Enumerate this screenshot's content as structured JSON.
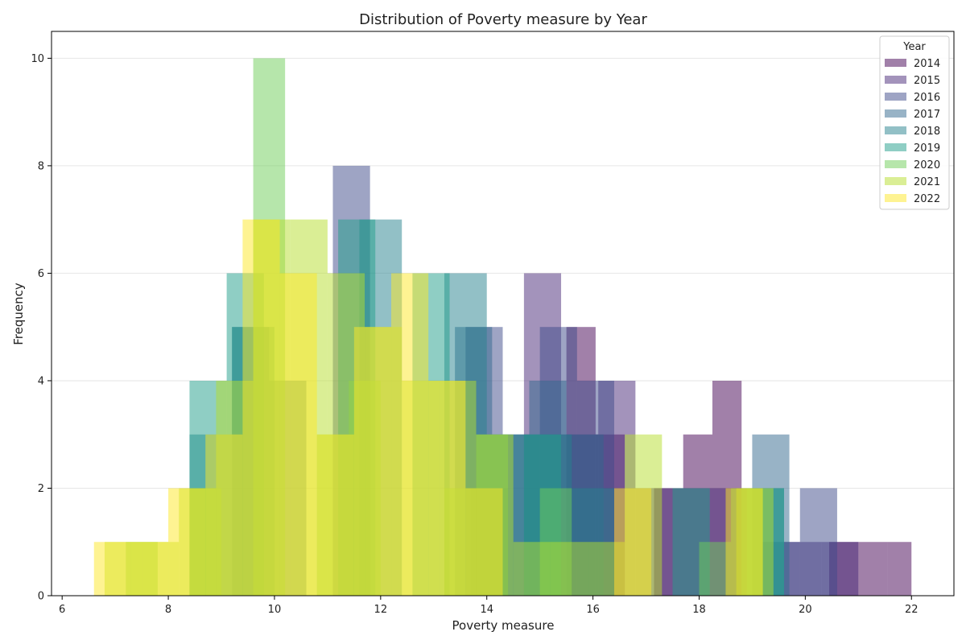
{
  "chart_data": {
    "type": "histogram",
    "title": "Distribution of Poverty measure by Year",
    "xlabel": "Poverty measure",
    "ylabel": "Frequency",
    "xlim": [
      5.8,
      22.8
    ],
    "ylim": [
      0,
      10.5
    ],
    "x_ticks": [
      6,
      8,
      10,
      12,
      14,
      16,
      18,
      20,
      22
    ],
    "y_ticks": [
      0,
      2,
      4,
      6,
      8,
      10
    ],
    "grid": "horizontal",
    "legend_title": "Year",
    "legend_position": "top-right",
    "bar_opacity": 0.5,
    "series": [
      {
        "name": "2014",
        "color": "#440154",
        "bin_edges": [
          10.0,
          10.55,
          11.1,
          11.65,
          12.2,
          12.75,
          13.3,
          13.85,
          14.4,
          14.95,
          15.5,
          16.05,
          16.6,
          17.15,
          17.7,
          18.25,
          18.8,
          19.35,
          19.9,
          20.45,
          21.0,
          21.55,
          22.0
        ],
        "counts": [
          0,
          0,
          0,
          0,
          0,
          0,
          0,
          0,
          0,
          0,
          5,
          3,
          0,
          2,
          3,
          4,
          0,
          0,
          0,
          1,
          1,
          1
        ]
      },
      {
        "name": "2015",
        "color": "#482878",
        "bin_edges": [
          9.5,
          10.2,
          10.9,
          11.6,
          12.3,
          13.0,
          13.7,
          14.4,
          14.7,
          15.4,
          16.1,
          16.8,
          17.5,
          18.2,
          18.9,
          19.6,
          20.3,
          21.0
        ],
        "counts": [
          0,
          0,
          0,
          0,
          0,
          0,
          2,
          0,
          6,
          3,
          4,
          2,
          2,
          2,
          0,
          1,
          1
        ]
      },
      {
        "name": "2016",
        "color": "#3e4a89",
        "bin_edges": [
          9.0,
          10.4,
          11.1,
          11.8,
          12.5,
          13.2,
          13.6,
          14.3,
          15.0,
          15.7,
          16.4,
          17.1,
          17.8,
          18.5,
          19.2,
          19.9,
          20.6
        ],
        "counts": [
          0,
          0,
          8,
          0,
          0,
          0,
          5,
          3,
          5,
          4,
          0,
          0,
          0,
          0,
          1,
          2
        ]
      },
      {
        "name": "2017",
        "color": "#31688e",
        "bin_edges": [
          8.5,
          9.2,
          9.9,
          10.6,
          11.3,
          12.0,
          12.7,
          13.4,
          14.1,
          14.8,
          15.5,
          16.2,
          16.9,
          17.6,
          18.3,
          19.0,
          19.7
        ],
        "counts": [
          0,
          5,
          4,
          0,
          0,
          0,
          0,
          5,
          3,
          4,
          3,
          0,
          0,
          0,
          0,
          3
        ]
      },
      {
        "name": "2018",
        "color": "#26828e",
        "bin_edges": [
          8.4,
          9.2,
          10.0,
          10.8,
          11.6,
          12.4,
          13.2,
          14.0,
          14.8,
          15.6,
          16.4,
          17.2,
          18.0,
          18.8,
          19.6
        ],
        "counts": [
          3,
          5,
          0,
          0,
          7,
          0,
          6,
          3,
          3,
          2,
          0,
          0,
          0,
          2
        ]
      },
      {
        "name": "2019",
        "color": "#1f9e89",
        "bin_edges": [
          8.4,
          9.1,
          9.8,
          10.5,
          11.2,
          11.9,
          12.6,
          13.3,
          14.0,
          14.7,
          15.4,
          16.1,
          16.8,
          17.5,
          18.2,
          18.9,
          19.6
        ],
        "counts": [
          4,
          6,
          0,
          0,
          7,
          0,
          6,
          0,
          0,
          3,
          0,
          0,
          0,
          2,
          0,
          2
        ]
      },
      {
        "name": "2020",
        "color": "#6ece58",
        "bin_edges": [
          7.2,
          7.8,
          8.4,
          9.0,
          9.6,
          10.2,
          10.8,
          11.4,
          12.0,
          12.6,
          13.2,
          13.8,
          14.4,
          15.0,
          15.6,
          16.2,
          16.8,
          17.4,
          18.0,
          18.6,
          19.2
        ],
        "counts": [
          1,
          0,
          2,
          0,
          10,
          0,
          3,
          4,
          0,
          0,
          2,
          3,
          0,
          2,
          0,
          0,
          0,
          0,
          1,
          2
        ]
      },
      {
        "name": "2021",
        "color": "#b5de2b",
        "bin_edges": [
          6.8,
          7.5,
          8.2,
          8.9,
          9.6,
          10.3,
          11.0,
          11.7,
          12.4,
          13.1,
          13.8,
          14.5,
          15.2,
          15.9,
          16.6,
          17.3,
          18.0,
          18.7,
          19.4
        ],
        "counts": [
          1,
          1,
          2,
          4,
          7,
          7,
          6,
          5,
          4,
          4,
          3,
          1,
          1,
          1,
          3,
          0,
          0,
          2
        ]
      },
      {
        "name": "2022",
        "color": "#fde725",
        "bin_edges": [
          6.6,
          7.3,
          8.0,
          8.7,
          9.4,
          10.1,
          10.8,
          11.5,
          12.2,
          12.9,
          13.6,
          14.3,
          15.0,
          15.7,
          16.4,
          17.1,
          17.8,
          18.5,
          19.2
        ],
        "counts": [
          1,
          1,
          2,
          3,
          7,
          6,
          3,
          5,
          6,
          4,
          2,
          0,
          0,
          0,
          2,
          0,
          0,
          2
        ]
      }
    ]
  }
}
